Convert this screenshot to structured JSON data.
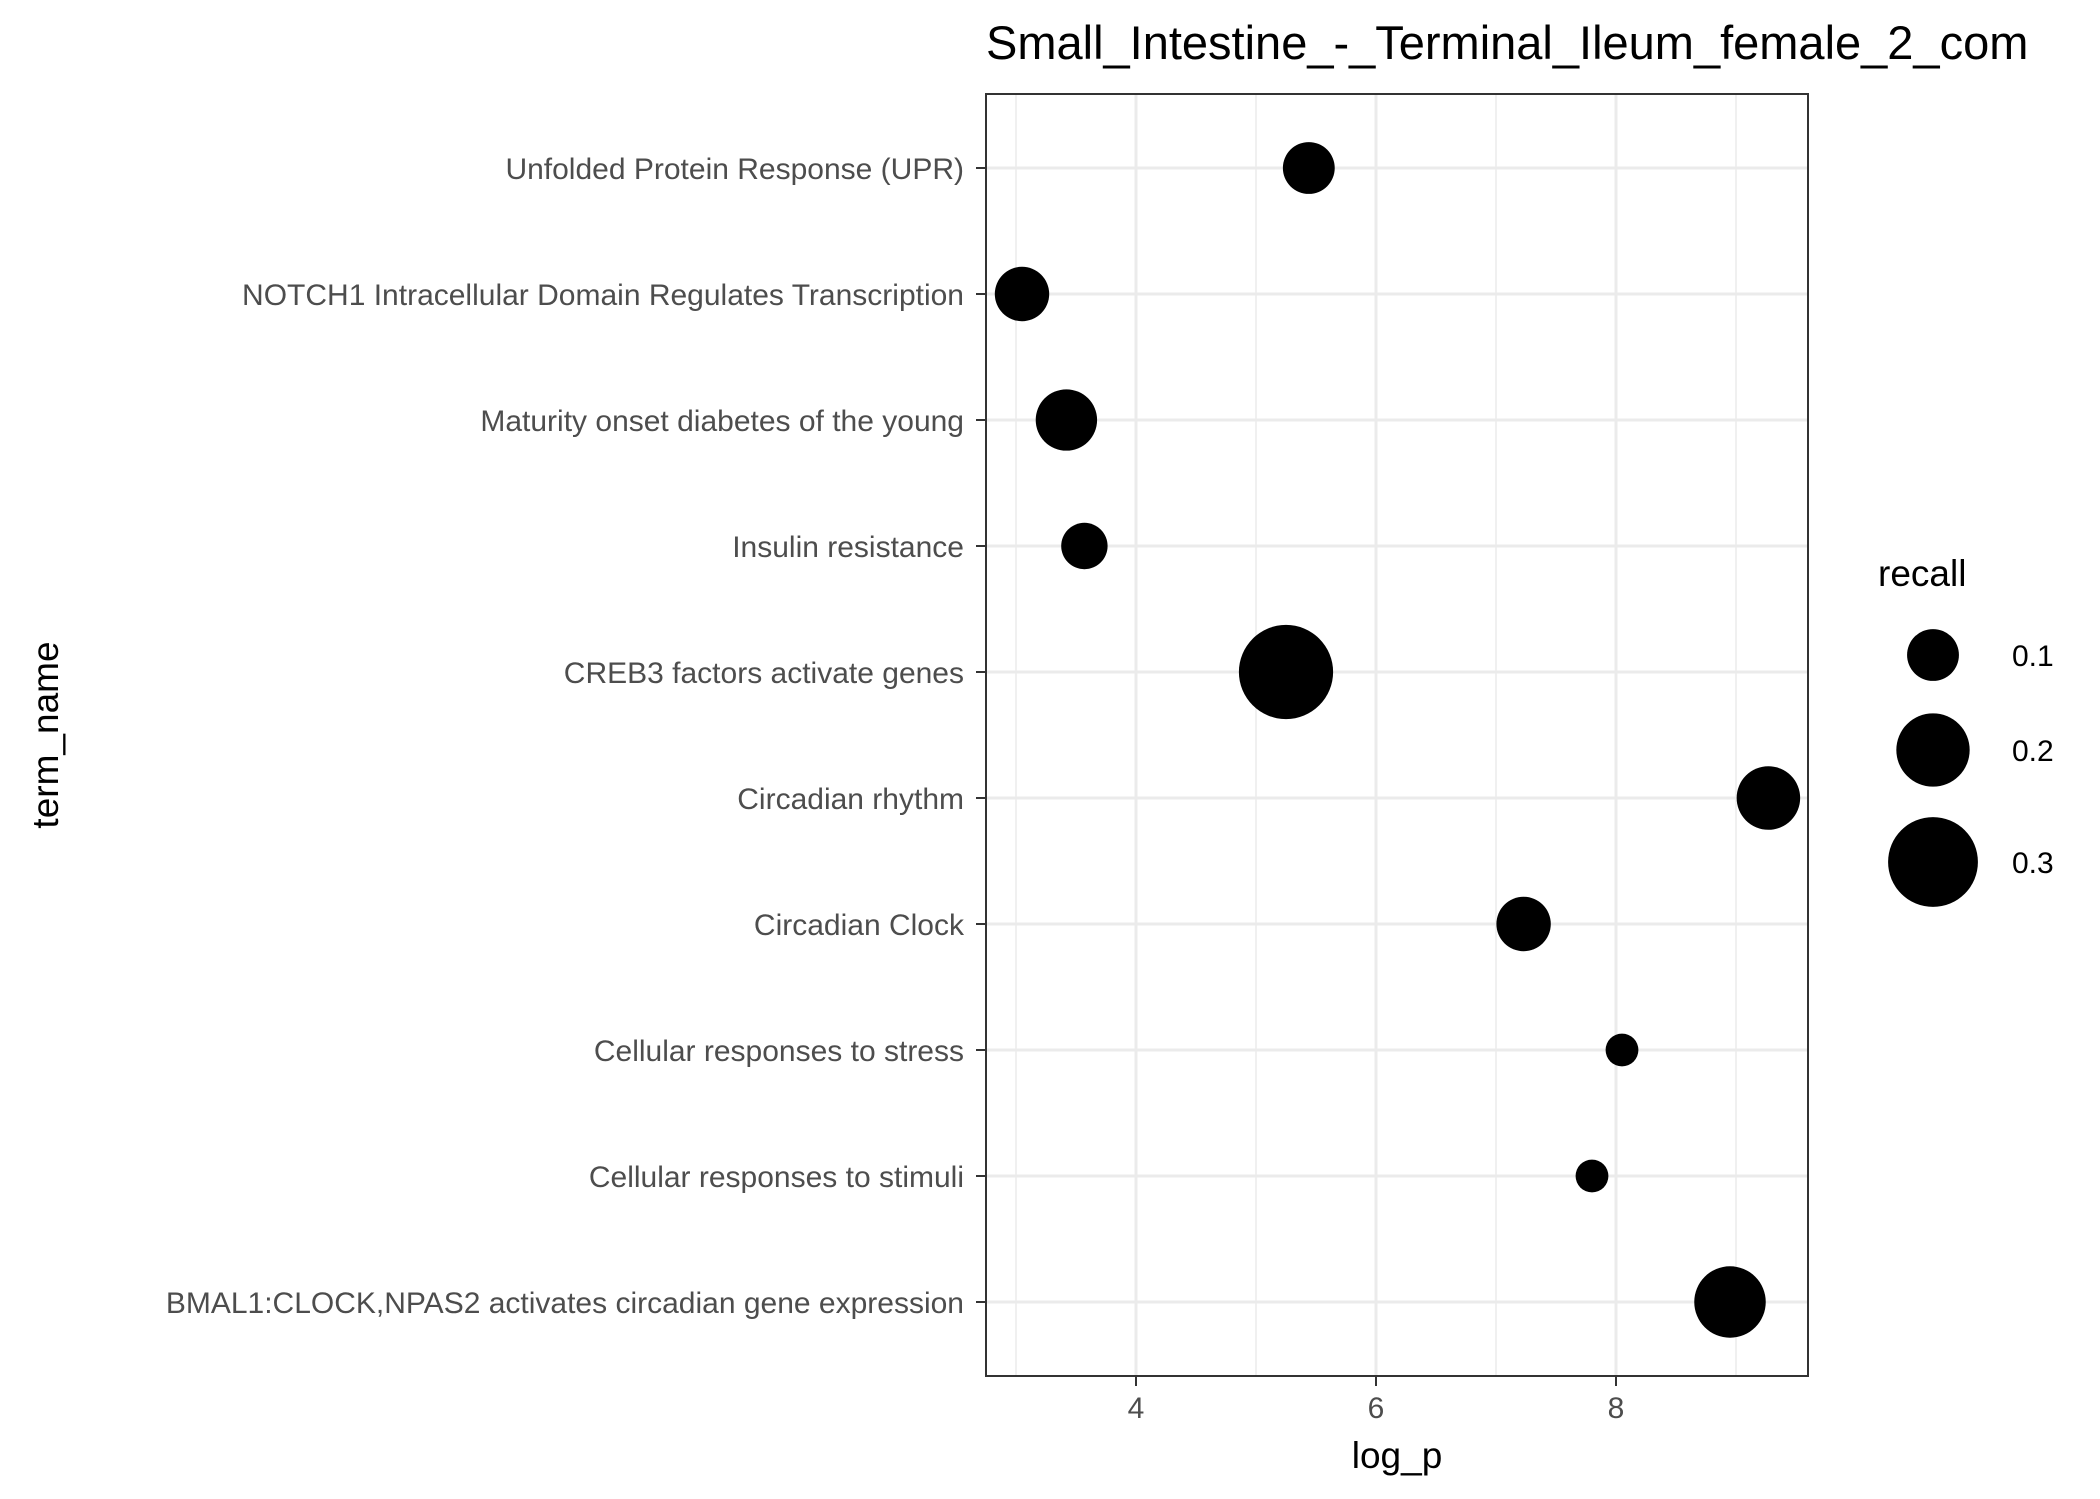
{
  "chart_data": {
    "type": "scatter",
    "title": "Small_Intestine_-_Terminal_Ileum_female_2_com",
    "xlabel": "log_p",
    "ylabel": "term_name",
    "xlim": [
      2.75,
      9.6
    ],
    "x_ticks": [
      4,
      6,
      8
    ],
    "grid": true,
    "categories": [
      "Unfolded Protein Response (UPR)",
      "NOTCH1 Intracellular Domain Regulates Transcription",
      "Maturity onset diabetes of the young",
      "Insulin resistance",
      "CREB3 factors activate genes",
      "Circadian rhythm",
      "Circadian Clock",
      "Cellular responses to stress",
      "Cellular responses to stimuli",
      "BMAL1:CLOCK,NPAS2 activates circadian gene expression"
    ],
    "points": [
      {
        "term": "Unfolded Protein Response (UPR)",
        "log_p": 5.44,
        "recall": 0.1
      },
      {
        "term": "NOTCH1 Intracellular Domain Regulates Transcription",
        "log_p": 3.05,
        "recall": 0.11
      },
      {
        "term": "Maturity onset diabetes of the young",
        "log_p": 3.42,
        "recall": 0.14
      },
      {
        "term": "Insulin resistance",
        "log_p": 3.57,
        "recall": 0.08
      },
      {
        "term": "CREB3 factors activate genes",
        "log_p": 5.25,
        "recall": 0.33
      },
      {
        "term": "Circadian rhythm",
        "log_p": 9.27,
        "recall": 0.15
      },
      {
        "term": "Circadian Clock",
        "log_p": 7.23,
        "recall": 0.11
      },
      {
        "term": "Cellular responses to stress",
        "log_p": 8.05,
        "recall": 0.04
      },
      {
        "term": "Cellular responses to stimuli",
        "log_p": 7.8,
        "recall": 0.04
      },
      {
        "term": "BMAL1:CLOCK,NPAS2 activates circadian gene expression",
        "log_p": 8.95,
        "recall": 0.19
      }
    ],
    "legend": {
      "title": "recall",
      "position": "right",
      "entries": [
        {
          "label": "0.1",
          "value": 0.1
        },
        {
          "label": "0.2",
          "value": 0.2
        },
        {
          "label": "0.3",
          "value": 0.3
        }
      ]
    },
    "point_color": "#000000",
    "grid_color": "#ebebeb",
    "panel_border_color": "#333333"
  }
}
